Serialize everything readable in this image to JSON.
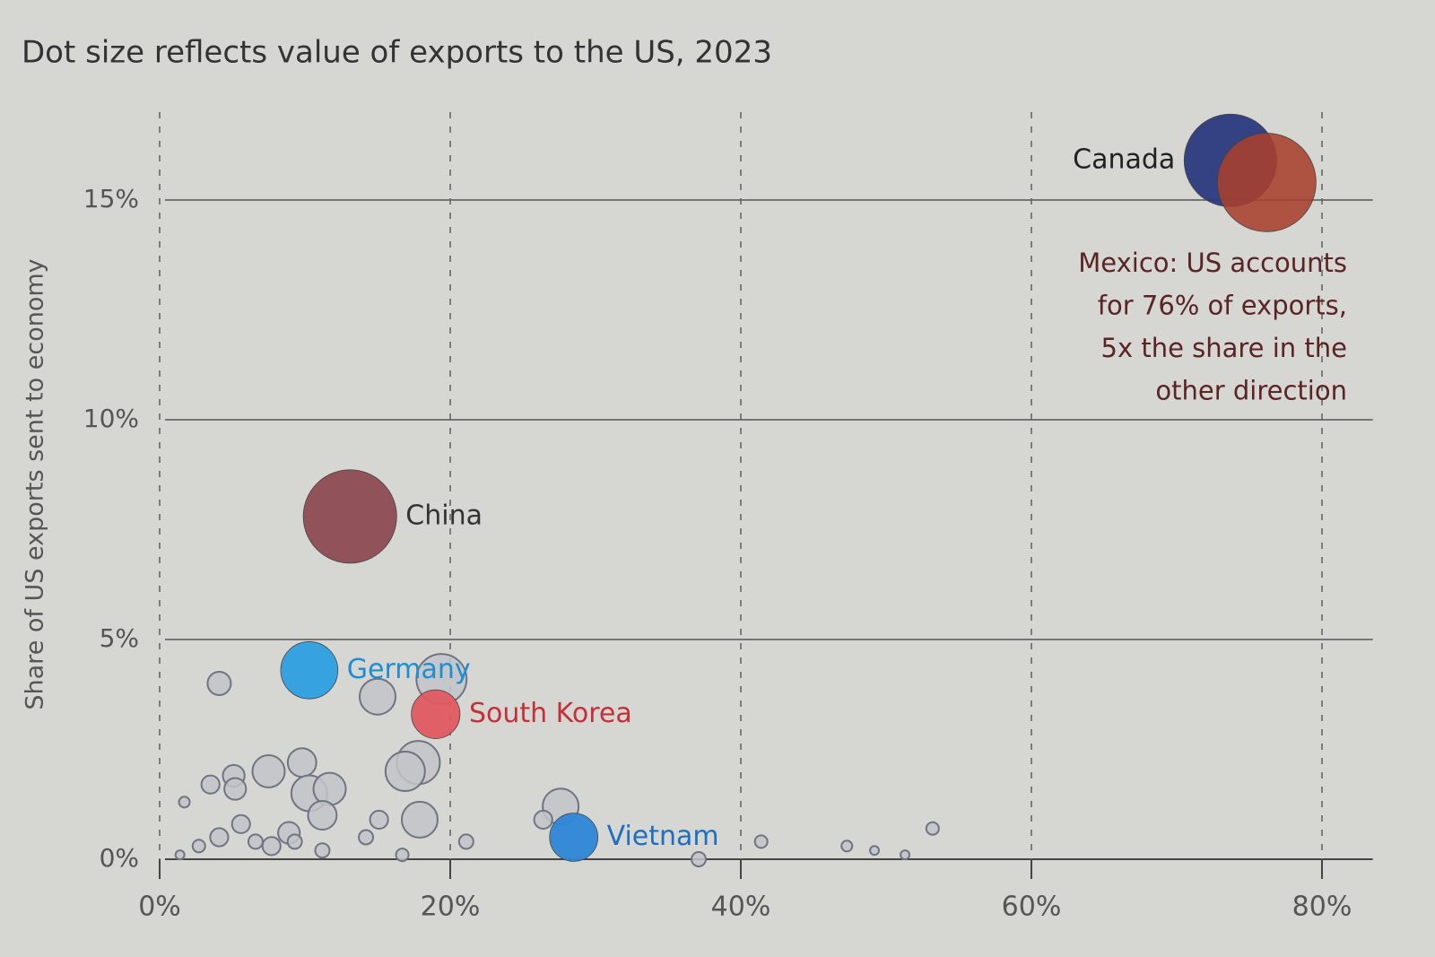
{
  "chart_data": {
    "type": "bubble",
    "title": "Dot size reflects value of exports to the US, 2023",
    "y_label": "Share of US exports sent to economy",
    "xlim": [
      0,
      83
    ],
    "ylim": [
      0,
      17.5
    ],
    "xticks": [
      {
        "value": 0,
        "label": "0%"
      },
      {
        "value": 20,
        "label": "20%"
      },
      {
        "value": 40,
        "label": "40%"
      },
      {
        "value": 60,
        "label": "60%"
      },
      {
        "value": 80,
        "label": "80%"
      }
    ],
    "yticks": [
      {
        "value": 0,
        "label": "0%"
      },
      {
        "value": 5,
        "label": "5%"
      },
      {
        "value": 10,
        "label": "10%"
      },
      {
        "value": 15,
        "label": "15%"
      }
    ],
    "grid": true,
    "annotation": [
      "Mexico: US accounts",
      "for 76% of exports,",
      "5x the share in the",
      "other direction"
    ],
    "points": [
      {
        "x": 4.1,
        "y": 4.0,
        "size": 26.6,
        "color": "#c2c4c9"
      },
      {
        "x": 15.0,
        "y": 3.7,
        "size": 63,
        "color": "#c2c4c9"
      },
      {
        "x": 19.4,
        "y": 4.1,
        "size": 123,
        "color": "#c2c4c9"
      },
      {
        "x": 17.8,
        "y": 2.2,
        "size": 91,
        "color": "#c2c4c9"
      },
      {
        "x": 16.9,
        "y": 2.0,
        "size": 76,
        "color": "#c2c4c9"
      },
      {
        "x": 7.5,
        "y": 2.0,
        "size": 51,
        "color": "#c2c4c9"
      },
      {
        "x": 9.8,
        "y": 2.2,
        "size": 40,
        "color": "#c2c4c9"
      },
      {
        "x": 10.3,
        "y": 1.5,
        "size": 63,
        "color": "#c2c4c9"
      },
      {
        "x": 11.7,
        "y": 1.6,
        "size": 51,
        "color": "#c2c4c9"
      },
      {
        "x": 11.2,
        "y": 1.0,
        "size": 40,
        "color": "#c2c4c9"
      },
      {
        "x": 17.9,
        "y": 0.9,
        "size": 63,
        "color": "#c2c4c9"
      },
      {
        "x": 27.6,
        "y": 1.2,
        "size": 63,
        "color": "#c2c4c9"
      },
      {
        "x": 5.1,
        "y": 1.9,
        "size": 23,
        "color": "#c2c4c9"
      },
      {
        "x": 5.2,
        "y": 1.6,
        "size": 23,
        "color": "#c2c4c9"
      },
      {
        "x": 3.5,
        "y": 1.7,
        "size": 16,
        "color": "#c2c4c9"
      },
      {
        "x": 5.6,
        "y": 0.8,
        "size": 16,
        "color": "#c2c4c9"
      },
      {
        "x": 8.9,
        "y": 0.6,
        "size": 23,
        "color": "#c2c4c9"
      },
      {
        "x": 4.1,
        "y": 0.5,
        "size": 16,
        "color": "#c2c4c9"
      },
      {
        "x": 15.1,
        "y": 0.9,
        "size": 16,
        "color": "#c2c4c9"
      },
      {
        "x": 14.2,
        "y": 0.5,
        "size": 10,
        "color": "#c2c4c9"
      },
      {
        "x": 26.4,
        "y": 0.9,
        "size": 16,
        "color": "#c2c4c9"
      },
      {
        "x": 21.1,
        "y": 0.4,
        "size": 10,
        "color": "#c2c4c9"
      },
      {
        "x": 41.4,
        "y": 0.4,
        "size": 7.7,
        "color": "#c2c4c9"
      },
      {
        "x": 47.3,
        "y": 0.3,
        "size": 5.7,
        "color": "#c2c4c9"
      },
      {
        "x": 49.2,
        "y": 0.2,
        "size": 3.9,
        "color": "#c2c4c9"
      },
      {
        "x": 53.2,
        "y": 0.7,
        "size": 7.7,
        "color": "#c2c4c9"
      },
      {
        "x": 37.1,
        "y": 0.0,
        "size": 10,
        "color": "#c2c4c9"
      },
      {
        "x": 51.3,
        "y": 0.1,
        "size": 3.9,
        "color": "#c2c4c9"
      },
      {
        "x": 1.7,
        "y": 1.3,
        "size": 5.7,
        "color": "#c2c4c9"
      },
      {
        "x": 7.7,
        "y": 0.3,
        "size": 16,
        "color": "#c2c4c9"
      },
      {
        "x": 6.6,
        "y": 0.4,
        "size": 10,
        "color": "#c2c4c9"
      },
      {
        "x": 11.2,
        "y": 0.2,
        "size": 10,
        "color": "#c2c4c9"
      },
      {
        "x": 16.7,
        "y": 0.1,
        "size": 7.7,
        "color": "#c2c4c9"
      },
      {
        "x": 2.7,
        "y": 0.3,
        "size": 7.7,
        "color": "#c2c4c9"
      },
      {
        "x": 1.4,
        "y": 0.1,
        "size": 3.9,
        "color": "#c2c4c9"
      },
      {
        "x": 9.3,
        "y": 0.4,
        "size": 10,
        "color": "#c2c4c9"
      },
      {
        "label": "China",
        "x": 13.1,
        "y": 7.8,
        "size": 427,
        "color": "#8d4b53",
        "label_color": "#333333"
      },
      {
        "label": "Germany",
        "x": 10.3,
        "y": 4.3,
        "size": 160,
        "color": "#2e9fe0",
        "label_color": "#1f8ed0"
      },
      {
        "label": "South Korea",
        "x": 19.0,
        "y": 3.3,
        "size": 116,
        "color": "#e05a62",
        "label_color": "#c43038"
      },
      {
        "label": "Vietnam",
        "x": 28.5,
        "y": 0.5,
        "size": 114,
        "color": "#2e86d6",
        "label_color": "#1f6fc0"
      },
      {
        "label": "Canada",
        "x": 73.7,
        "y": 15.9,
        "size": 420,
        "color": "#2b3a7e",
        "label_color": "#222222"
      },
      {
        "x": 76.2,
        "y": 15.4,
        "size": 475,
        "color": "#a8402e",
        "opacity": 0.88
      }
    ]
  }
}
